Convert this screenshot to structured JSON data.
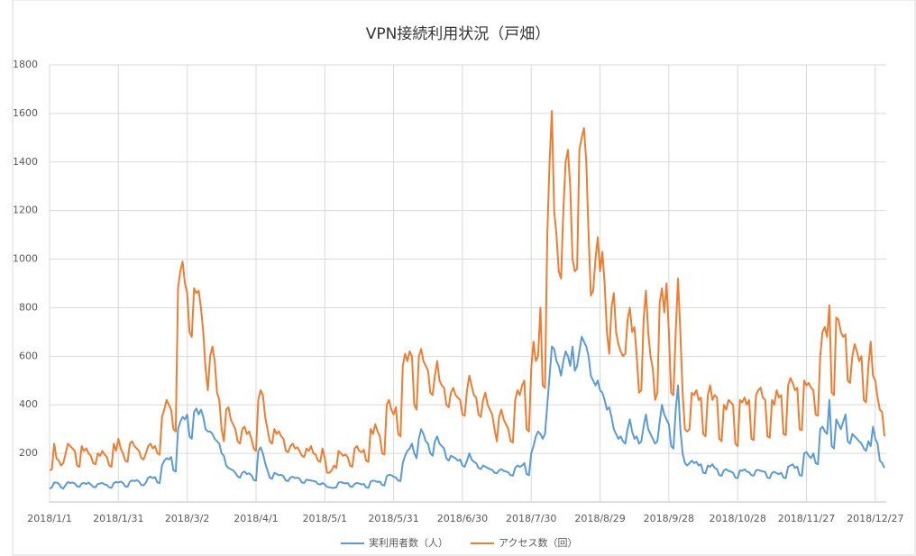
{
  "chart_data": {
    "type": "line",
    "title": "VPN接続利用状況（戸畑）",
    "categories": [
      "2018/1/1",
      null,
      null,
      null,
      null,
      null,
      null,
      null,
      null,
      null,
      null,
      null,
      null,
      null,
      null,
      null,
      null,
      null,
      null,
      null,
      null,
      null,
      null,
      null,
      null,
      null,
      null,
      null,
      null,
      null,
      "2018/1/31",
      null,
      null,
      null,
      null,
      null,
      null,
      null,
      null,
      null,
      null,
      null,
      null,
      null,
      null,
      null,
      null,
      null,
      null,
      null,
      null,
      null,
      null,
      null,
      null,
      null,
      null,
      null,
      null,
      null,
      "2018/3/2",
      null,
      null,
      null,
      null,
      null,
      null,
      null,
      null,
      null,
      null,
      null,
      null,
      null,
      null,
      null,
      null,
      null,
      null,
      null,
      null,
      null,
      null,
      null,
      null,
      null,
      null,
      null,
      null,
      null,
      "2018/4/1",
      null,
      null,
      null,
      null,
      null,
      null,
      null,
      null,
      null,
      null,
      null,
      null,
      null,
      null,
      null,
      null,
      null,
      null,
      null,
      null,
      null,
      null,
      null,
      null,
      null,
      null,
      null,
      null,
      null,
      "2018/5/1",
      null,
      null,
      null,
      null,
      null,
      null,
      null,
      null,
      null,
      null,
      null,
      null,
      null,
      null,
      null,
      null,
      null,
      null,
      null,
      null,
      null,
      null,
      null,
      null,
      null,
      null,
      null,
      null,
      null,
      "2018/5/31",
      null,
      null,
      null,
      null,
      null,
      null,
      null,
      null,
      null,
      null,
      null,
      null,
      null,
      null,
      null,
      null,
      null,
      null,
      null,
      null,
      null,
      null,
      null,
      null,
      null,
      null,
      null,
      null,
      null,
      "2018/6/30",
      null,
      null,
      null,
      null,
      null,
      null,
      null,
      null,
      null,
      null,
      null,
      null,
      null,
      null,
      null,
      null,
      null,
      null,
      null,
      null,
      null,
      null,
      null,
      null,
      null,
      null,
      null,
      null,
      null,
      "2018/7/30",
      null,
      null,
      null,
      null,
      null,
      null,
      null,
      null,
      null,
      null,
      null,
      null,
      null,
      null,
      null,
      null,
      null,
      null,
      null,
      null,
      null,
      null,
      null,
      null,
      null,
      null,
      null,
      null,
      null,
      "2018/8/29",
      null,
      null,
      null,
      null,
      null,
      null,
      null,
      null,
      null,
      null,
      null,
      null,
      null,
      null,
      null,
      null,
      null,
      null,
      null,
      null,
      null,
      null,
      null,
      null,
      null,
      null,
      null,
      null,
      null,
      "2018/9/28",
      null,
      null,
      null,
      null,
      null,
      null,
      null,
      null,
      null,
      null,
      null,
      null,
      null,
      null,
      null,
      null,
      null,
      null,
      null,
      null,
      null,
      null,
      null,
      null,
      null,
      null,
      null,
      null,
      null,
      "2018/10/28",
      null,
      null,
      null,
      null,
      null,
      null,
      null,
      null,
      null,
      null,
      null,
      null,
      null,
      null,
      null,
      null,
      null,
      null,
      null,
      null,
      null,
      null,
      null,
      null,
      null,
      null,
      null,
      null,
      null,
      "2018/11/27",
      null,
      null,
      null,
      null,
      null,
      null,
      null,
      null,
      null,
      null,
      null,
      null,
      null,
      null,
      null,
      null,
      null,
      null,
      null,
      null,
      null,
      null,
      null,
      null,
      null,
      null,
      null,
      null,
      null,
      "2018/12/27",
      null,
      null,
      null,
      null
    ],
    "series": [
      {
        "name": "実利用者数（人）",
        "color": "#5b9bd5",
        "values": [
          55,
          60,
          80,
          80,
          75,
          60,
          55,
          70,
          82,
          78,
          80,
          76,
          64,
          62,
          76,
          78,
          74,
          80,
          72,
          62,
          60,
          74,
          76,
          78,
          72,
          70,
          60,
          58,
          78,
          82,
          80,
          84,
          78,
          64,
          62,
          84,
          88,
          86,
          90,
          84,
          70,
          68,
          80,
          100,
          104,
          98,
          102,
          80,
          78,
          150,
          170,
          180,
          175,
          185,
          130,
          125,
          300,
          330,
          350,
          340,
          360,
          270,
          260,
          370,
          385,
          360,
          380,
          350,
          300,
          290,
          290,
          280,
          260,
          250,
          240,
          200,
          190,
          150,
          140,
          135,
          130,
          120,
          105,
          100,
          120,
          125,
          115,
          118,
          110,
          90,
          88,
          210,
          225,
          200,
          160,
          130,
          100,
          95,
          120,
          115,
          110,
          112,
          105,
          88,
          86,
          100,
          104,
          98,
          100,
          96,
          80,
          78,
          92,
          90,
          88,
          86,
          84,
          74,
          72,
          78,
          72,
          62,
          60,
          58,
          58,
          60,
          80,
          82,
          78,
          76,
          78,
          64,
          62,
          74,
          78,
          76,
          72,
          74,
          60,
          58,
          84,
          88,
          86,
          82,
          84,
          70,
          68,
          106,
          112,
          110,
          104,
          100,
          88,
          86,
          160,
          190,
          210,
          220,
          240,
          200,
          180,
          260,
          300,
          280,
          250,
          240,
          200,
          190,
          250,
          270,
          240,
          230,
          220,
          180,
          170,
          190,
          185,
          180,
          170,
          175,
          150,
          145,
          170,
          200,
          175,
          165,
          160,
          140,
          135,
          150,
          145,
          140,
          135,
          132,
          120,
          118,
          130,
          135,
          128,
          125,
          122,
          110,
          108,
          140,
          150,
          145,
          150,
          160,
          115,
          110,
          200,
          230,
          270,
          290,
          280,
          260,
          280,
          400,
          520,
          640,
          630,
          580,
          560,
          520,
          580,
          620,
          600,
          560,
          640,
          540,
          560,
          620,
          680,
          660,
          640,
          600,
          520,
          500,
          480,
          500,
          460,
          450,
          420,
          380,
          390,
          350,
          300,
          280,
          260,
          270,
          250,
          240,
          300,
          340,
          290,
          260,
          270,
          240,
          250,
          310,
          360,
          300,
          280,
          260,
          240,
          250,
          330,
          400,
          360,
          340,
          320,
          230,
          220,
          380,
          480,
          300,
          200,
          160,
          150,
          160,
          170,
          160,
          165,
          150,
          155,
          120,
          118,
          150,
          145,
          155,
          140,
          135,
          110,
          108,
          130,
          135,
          128,
          125,
          120,
          100,
          98,
          130,
          128,
          135,
          125,
          122,
          110,
          108,
          130,
          132,
          128,
          126,
          124,
          100,
          98,
          120,
          124,
          118,
          115,
          120,
          100,
          98,
          145,
          150,
          155,
          140,
          145,
          110,
          108,
          200,
          205,
          190,
          180,
          200,
          160,
          155,
          300,
          310,
          290,
          280,
          420,
          230,
          220,
          340,
          320,
          300,
          330,
          360,
          250,
          240,
          280,
          270,
          260,
          250,
          240,
          220,
          210,
          250,
          230,
          310,
          260,
          240,
          170,
          160,
          140
        ]
      },
      {
        "name": "アクセス数（回）",
        "color": "#ed7d31",
        "values": [
          130,
          135,
          240,
          180,
          170,
          150,
          160,
          200,
          240,
          230,
          220,
          210,
          150,
          145,
          230,
          210,
          220,
          200,
          190,
          160,
          155,
          200,
          190,
          210,
          195,
          185,
          150,
          145,
          240,
          210,
          260,
          220,
          200,
          170,
          165,
          240,
          250,
          230,
          220,
          210,
          180,
          175,
          200,
          230,
          240,
          220,
          230,
          200,
          195,
          350,
          380,
          420,
          400,
          380,
          300,
          290,
          880,
          950,
          990,
          900,
          860,
          700,
          680,
          880,
          860,
          870,
          800,
          700,
          550,
          460,
          600,
          640,
          580,
          450,
          420,
          300,
          250,
          380,
          390,
          340,
          320,
          300,
          250,
          240,
          300,
          310,
          280,
          290,
          260,
          220,
          210,
          420,
          460,
          440,
          350,
          300,
          250,
          240,
          300,
          280,
          290,
          270,
          260,
          210,
          205,
          230,
          240,
          220,
          225,
          210,
          190,
          185,
          220,
          210,
          230,
          200,
          195,
          170,
          165,
          220,
          180,
          120,
          120,
          130,
          150,
          140,
          210,
          200,
          190,
          195,
          185,
          150,
          145,
          220,
          230,
          210,
          205,
          215,
          170,
          165,
          300,
          280,
          320,
          290,
          270,
          200,
          195,
          400,
          420,
          380,
          360,
          390,
          280,
          270,
          560,
          610,
          580,
          620,
          600,
          400,
          380,
          600,
          630,
          580,
          560,
          540,
          450,
          440,
          520,
          580,
          500,
          480,
          470,
          400,
          390,
          450,
          470,
          440,
          430,
          420,
          360,
          355,
          460,
          520,
          480,
          440,
          430,
          360,
          350,
          420,
          450,
          400,
          380,
          360,
          300,
          250,
          350,
          380,
          340,
          320,
          300,
          250,
          245,
          420,
          460,
          440,
          480,
          500,
          300,
          290,
          550,
          660,
          580,
          600,
          800,
          480,
          470,
          1100,
          1400,
          1610,
          1200,
          1100,
          950,
          920,
          1200,
          1400,
          1450,
          1300,
          1000,
          950,
          960,
          1450,
          1500,
          1540,
          1400,
          1100,
          850,
          870,
          1000,
          1090,
          950,
          1030,
          900,
          700,
          610,
          800,
          860,
          700,
          650,
          620,
          600,
          610,
          750,
          800,
          700,
          720,
          600,
          450,
          460,
          750,
          870,
          700,
          600,
          550,
          420,
          450,
          820,
          880,
          780,
          900,
          700,
          450,
          440,
          700,
          920,
          700,
          450,
          300,
          290,
          300,
          450,
          440,
          460,
          420,
          430,
          280,
          270,
          440,
          480,
          420,
          440,
          430,
          260,
          250,
          400,
          380,
          420,
          410,
          400,
          240,
          230,
          420,
          410,
          430,
          400,
          420,
          260,
          255,
          440,
          460,
          470,
          430,
          420,
          270,
          265,
          420,
          400,
          460,
          430,
          440,
          280,
          275,
          480,
          510,
          490,
          460,
          470,
          300,
          295,
          500,
          480,
          490,
          470,
          460,
          360,
          355,
          600,
          700,
          720,
          680,
          810,
          450,
          440,
          760,
          750,
          700,
          680,
          690,
          500,
          490,
          600,
          650,
          620,
          580,
          600,
          420,
          410,
          560,
          660,
          520,
          500,
          430,
          380,
          370,
          270
        ]
      }
    ],
    "ylim": [
      0,
      1800
    ],
    "yticks": [
      200,
      400,
      600,
      800,
      1000,
      1200,
      1400,
      1600,
      1800
    ],
    "grid": true,
    "legend": "bottom"
  }
}
